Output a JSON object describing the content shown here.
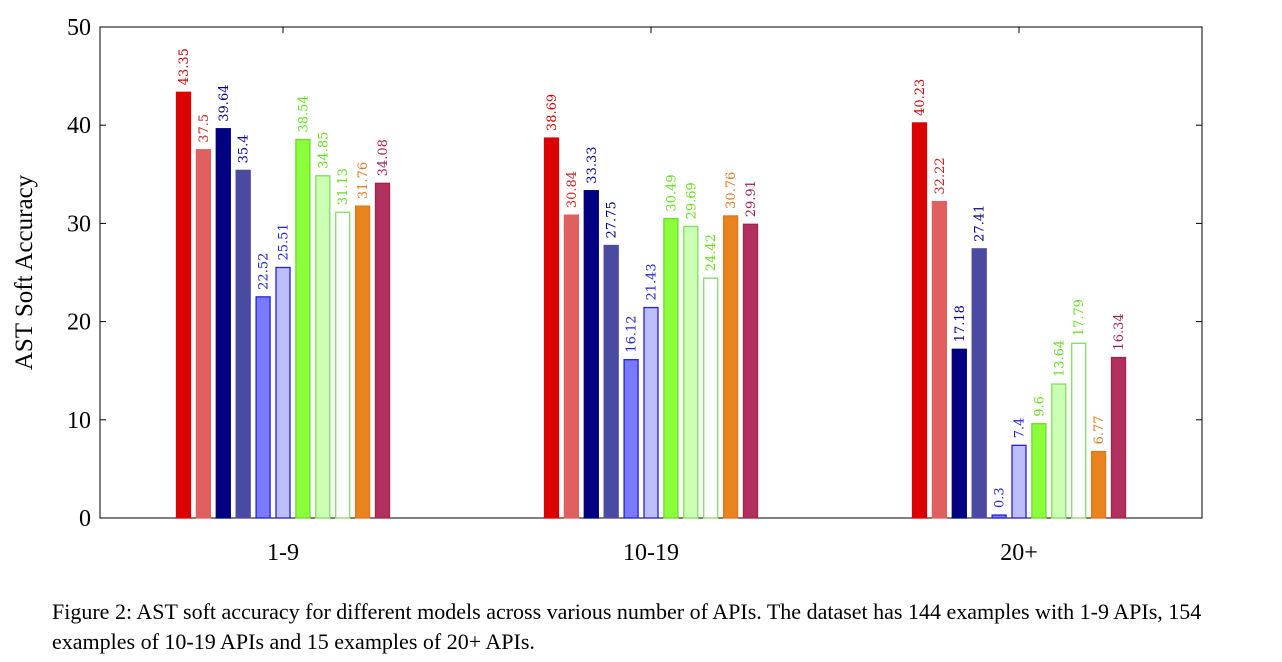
{
  "chart_data": {
    "type": "bar",
    "title": "",
    "xlabel": "",
    "ylabel": "AST Soft Accuracy",
    "ylim": [
      0,
      50
    ],
    "yticks": [
      0,
      10,
      20,
      30,
      40,
      50
    ],
    "grid": false,
    "legend": "none",
    "categories": [
      "1-9",
      "10-19",
      "20+"
    ],
    "series": [
      {
        "name": "series-1",
        "color": "#dd0000",
        "style": "solid",
        "values": [
          43.35,
          38.69,
          40.23
        ]
      },
      {
        "name": "series-2",
        "color": "#e06060",
        "style": "solid",
        "values": [
          37.5,
          30.84,
          32.22
        ]
      },
      {
        "name": "series-3",
        "color": "#000080",
        "style": "solid",
        "values": [
          39.64,
          33.33,
          17.18
        ]
      },
      {
        "name": "series-4",
        "color": "#4a4aa0",
        "style": "solid",
        "values": [
          35.4,
          27.75,
          27.41
        ]
      },
      {
        "name": "series-5",
        "color": "#2222dd",
        "fill": "#7a7aff",
        "style": "solid",
        "values": [
          22.52,
          16.12,
          0.3
        ]
      },
      {
        "name": "series-6",
        "color": "#2222dd",
        "fill": "#bdbdff",
        "style": "light",
        "values": [
          25.51,
          21.43,
          7.4
        ]
      },
      {
        "name": "series-7",
        "color": "#6cdc2a",
        "fill": "#8cff3c",
        "style": "solid",
        "values": [
          38.54,
          30.49,
          9.6
        ]
      },
      {
        "name": "series-8",
        "color": "#7ee060",
        "fill": "#caffb4",
        "style": "light",
        "values": [
          34.85,
          29.69,
          13.64
        ]
      },
      {
        "name": "series-9",
        "color": "#7ee060",
        "fill": "#ffffff",
        "style": "hollow",
        "values": [
          31.13,
          24.42,
          17.79
        ]
      },
      {
        "name": "series-10",
        "color": "#e07818",
        "fill": "#e88320",
        "style": "solid",
        "values": [
          31.76,
          30.76,
          6.77
        ]
      },
      {
        "name": "series-11",
        "color": "#a02050",
        "fill": "#b2305e",
        "style": "solid",
        "values": [
          34.08,
          29.91,
          16.34
        ]
      }
    ],
    "data_labels": [
      [
        "43.35",
        "37.5",
        "39.64",
        "35.4",
        "22.52",
        "25.51",
        "38.54",
        "34.85",
        "31.13",
        "31.76",
        "34.08"
      ],
      [
        "38.69",
        "30.84",
        "33.33",
        "27.75",
        "16.12",
        "21.43",
        "30.49",
        "29.69",
        "24.42",
        "30.76",
        "29.91"
      ],
      [
        "40.23",
        "32.22",
        "17.18",
        "27.41",
        "0.3",
        "7.4",
        "9.6",
        "13.64",
        "17.79",
        "6.77",
        "16.34"
      ]
    ],
    "label_colors": [
      "#cc0000",
      "#cc2222",
      "#000080",
      "#000080",
      "#2222cc",
      "#2222cc",
      "#66dd22",
      "#66dd22",
      "#66dd22",
      "#dd7722",
      "#992050"
    ]
  },
  "caption": "Figure 2: AST soft accuracy for different models across various number of APIs. The dataset has 144 examples with 1-9 APIs, 154 examples of 10-19 APIs and 15 examples of 20+ APIs."
}
